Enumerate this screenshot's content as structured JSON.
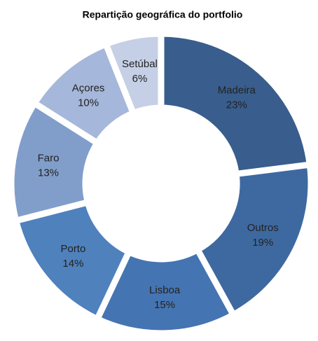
{
  "chart_data": {
    "type": "donut",
    "title": "Repartição geográfica do portfolio",
    "categories": [
      "Madeira",
      "Outros",
      "Lisboa",
      "Porto",
      "Faro",
      "Açores",
      "Setúbal"
    ],
    "values": [
      23,
      19,
      15,
      14,
      13,
      10,
      6
    ],
    "value_labels": [
      "23%",
      "19%",
      "15%",
      "14%",
      "13%",
      "10%",
      "6%"
    ],
    "colors": [
      "#395d8c",
      "#3e69a0",
      "#4574b2",
      "#4f81bd",
      "#819ecb",
      "#a5b7da",
      "#c5d0e6"
    ]
  }
}
